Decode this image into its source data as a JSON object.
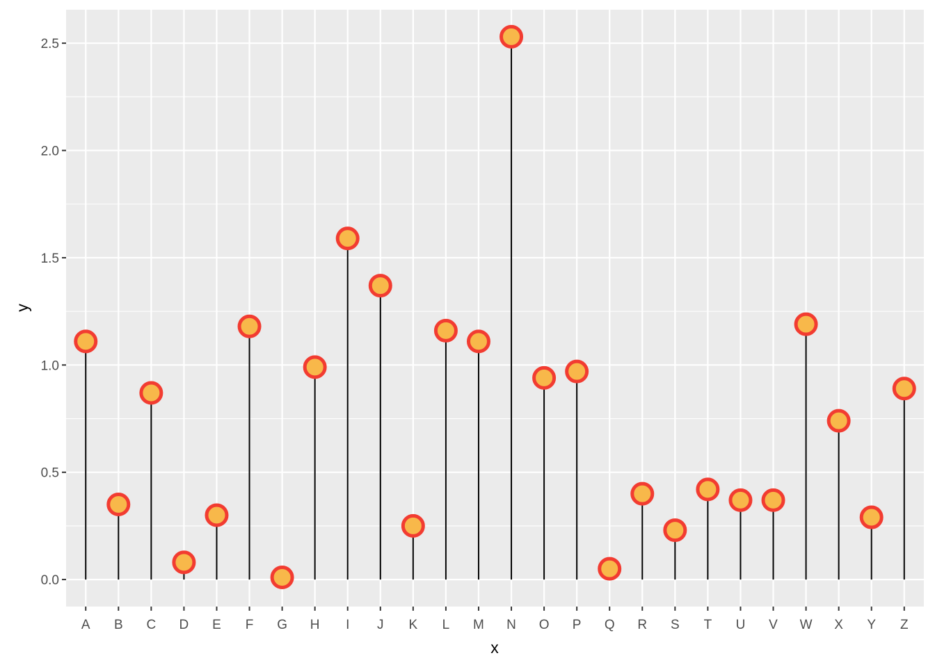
{
  "chart_data": {
    "type": "lollipop",
    "title": "",
    "xlabel": "x",
    "ylabel": "y",
    "categories": [
      "A",
      "B",
      "C",
      "D",
      "E",
      "F",
      "G",
      "H",
      "I",
      "J",
      "K",
      "L",
      "M",
      "N",
      "O",
      "P",
      "Q",
      "R",
      "S",
      "T",
      "U",
      "V",
      "W",
      "X",
      "Y",
      "Z"
    ],
    "values": [
      1.11,
      0.35,
      0.87,
      0.08,
      0.3,
      1.18,
      0.01,
      0.99,
      1.59,
      1.37,
      0.25,
      1.16,
      1.11,
      2.53,
      0.94,
      0.97,
      0.05,
      0.4,
      0.23,
      0.42,
      0.37,
      0.37,
      1.19,
      0.74,
      0.29,
      0.89
    ],
    "ylim": [
      -0.126,
      2.656
    ],
    "y_ticks": [
      0.0,
      0.5,
      1.0,
      1.5,
      2.0,
      2.5
    ],
    "y_tick_labels": [
      "0.0",
      "0.5",
      "1.0",
      "1.5",
      "2.0",
      "2.5"
    ],
    "grid": true,
    "colors": {
      "panel_background": "#ebebeb",
      "grid": "#ffffff",
      "stem": "#000000",
      "point_fill": "#f8b84a",
      "point_outline": "#f23c31",
      "tick_text": "#4d4d4d"
    }
  }
}
